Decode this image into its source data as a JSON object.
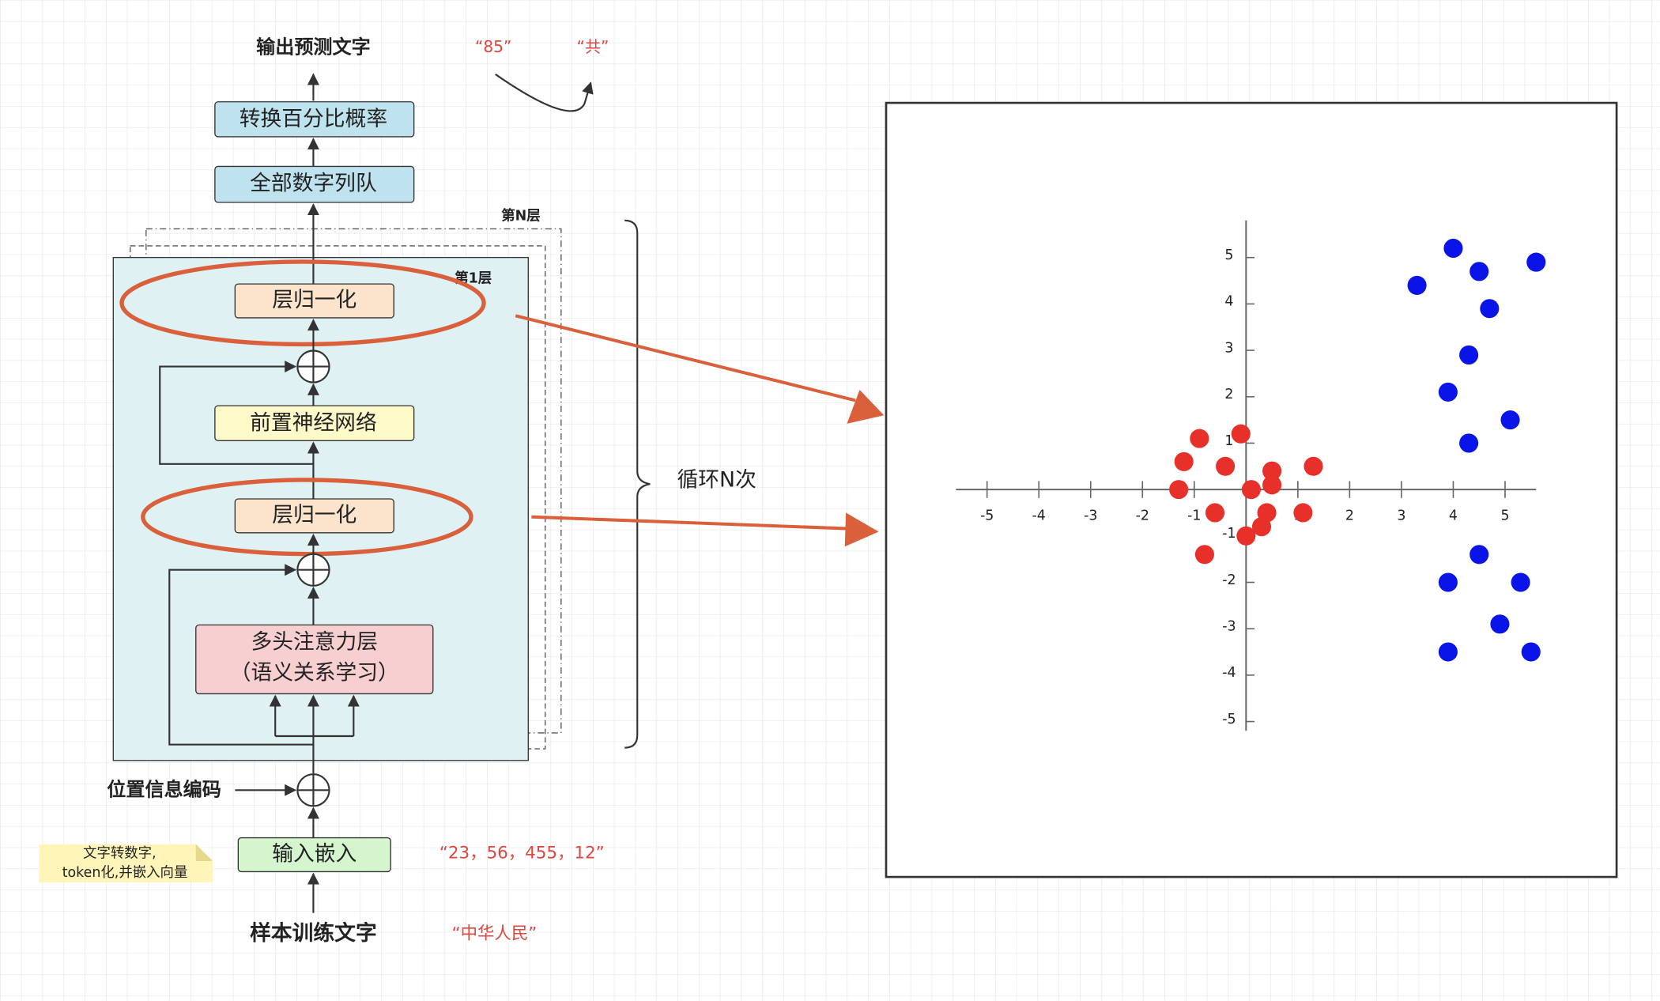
{
  "diagram": {
    "output_label": "输出预测文字",
    "output_example": "“85”",
    "output_next_example": "“共”",
    "softmax": "转换百分比概率",
    "all_numbers": "全部数字列队",
    "layer_n": "第N层",
    "layer_1": "第1层",
    "layer_norm_top": "层归一化",
    "ffn": "前置神经网络",
    "layer_norm_bottom": "层归一化",
    "attention": [
      "多头注意力层",
      "（语义关系学习）"
    ],
    "loop": "循环N次",
    "position_encoding": "位置信息编码",
    "embedding": "输入嵌入",
    "embedding_example": "“23，56，455，12”",
    "note": [
      "文字转数字,",
      "token化,并嵌入向量"
    ],
    "input_label": "样本训练文字",
    "input_example": "“中华人民”"
  },
  "scatter": {
    "type": "scatter",
    "xlim": [
      -5.6,
      5.6
    ],
    "ylim": [
      -5.2,
      5.8
    ],
    "xticks": [
      -5,
      -4,
      -3,
      -2,
      -1,
      1,
      2,
      3,
      4,
      5
    ],
    "yticks": [
      -5,
      -4,
      -3,
      -2,
      -1,
      1,
      2,
      3,
      4,
      5
    ],
    "series": [
      {
        "color": "#e8302a",
        "x": [
          -0.9,
          -0.1,
          -1.2,
          -0.4,
          0.5,
          1.3,
          -1.3,
          0.1,
          0.5,
          -0.6,
          0.4,
          1.1,
          0.3,
          0.0,
          -0.8
        ],
        "y": [
          1.1,
          1.2,
          0.6,
          0.5,
          0.4,
          0.5,
          0.0,
          0.0,
          0.1,
          -0.5,
          -0.5,
          -0.5,
          -0.8,
          -1.0,
          -1.4
        ]
      },
      {
        "color": "#0a14e8",
        "x": [
          4.0,
          5.6,
          4.5,
          3.3,
          4.7,
          4.3,
          3.9,
          5.1,
          4.3,
          4.5,
          3.9,
          5.3,
          4.9,
          3.9,
          5.5
        ],
        "y": [
          5.2,
          4.9,
          4.7,
          4.4,
          3.9,
          2.9,
          2.1,
          1.5,
          1.0,
          -1.4,
          -2.0,
          -2.0,
          -2.9,
          -3.5,
          -3.5
        ]
      }
    ]
  }
}
